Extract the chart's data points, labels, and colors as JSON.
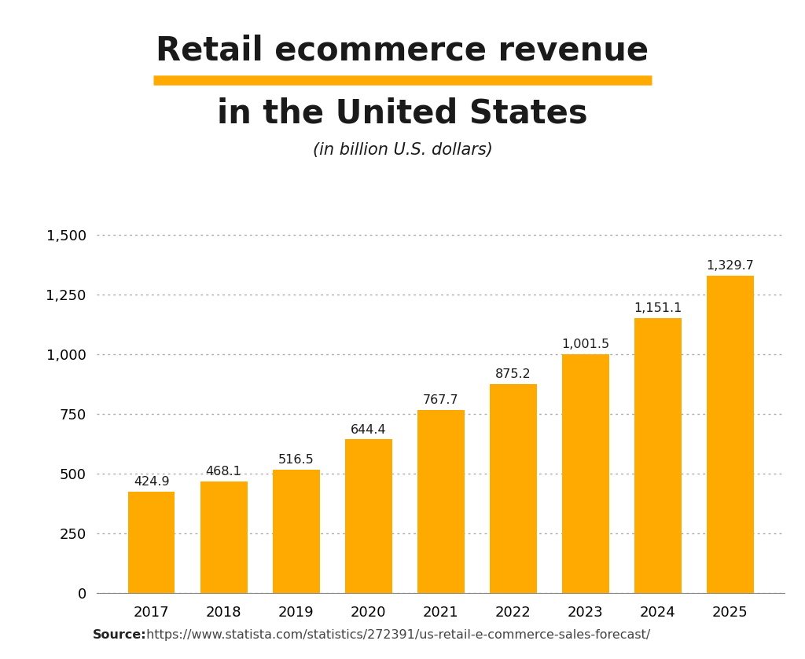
{
  "title_line1": "Retail ecommerce revenue",
  "title_line2": "in the United States",
  "subtitle": "(in billion U.S. dollars)",
  "years": [
    2017,
    2018,
    2019,
    2020,
    2021,
    2022,
    2023,
    2024,
    2025
  ],
  "values": [
    424.9,
    468.1,
    516.5,
    644.4,
    767.7,
    875.2,
    1001.5,
    1151.1,
    1329.7
  ],
  "bar_color": "#FFAA00",
  "title_color": "#1a1a1a",
  "underline_color": "#FFAA00",
  "background_color": "#ffffff",
  "yticks": [
    0,
    250,
    500,
    750,
    1000,
    1250,
    1500
  ],
  "ylim": [
    0,
    1600
  ],
  "source_bold": "Source:",
  "source_url": " https://www.statista.com/statistics/272391/us-retail-e-commerce-sales-forecast/",
  "title_fontsize": 30,
  "subtitle_fontsize": 15,
  "bar_label_fontsize": 11.5,
  "axis_tick_fontsize": 13,
  "source_fontsize": 11.5
}
